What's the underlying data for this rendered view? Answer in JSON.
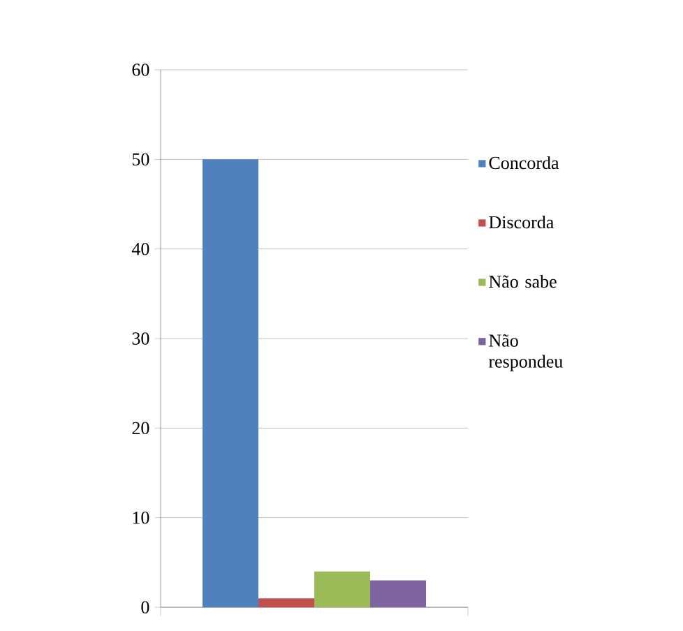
{
  "chart_data": {
    "type": "bar",
    "categories": [
      null
    ],
    "series": [
      {
        "name": "Concorda",
        "color": "#4f81bd",
        "values": [
          50
        ]
      },
      {
        "name": "Discorda",
        "color": "#c0504d",
        "values": [
          1
        ]
      },
      {
        "name": "Não sabe",
        "color": "#9bbb59",
        "values": [
          4
        ]
      },
      {
        "name": "Não respondeu",
        "color": "#8064a2",
        "values": [
          3
        ]
      }
    ],
    "ylim": [
      0,
      60
    ],
    "yticks": [
      0,
      10,
      20,
      30,
      40,
      50,
      60
    ],
    "grid": "y",
    "legend": "right",
    "tick_labels": "y"
  }
}
